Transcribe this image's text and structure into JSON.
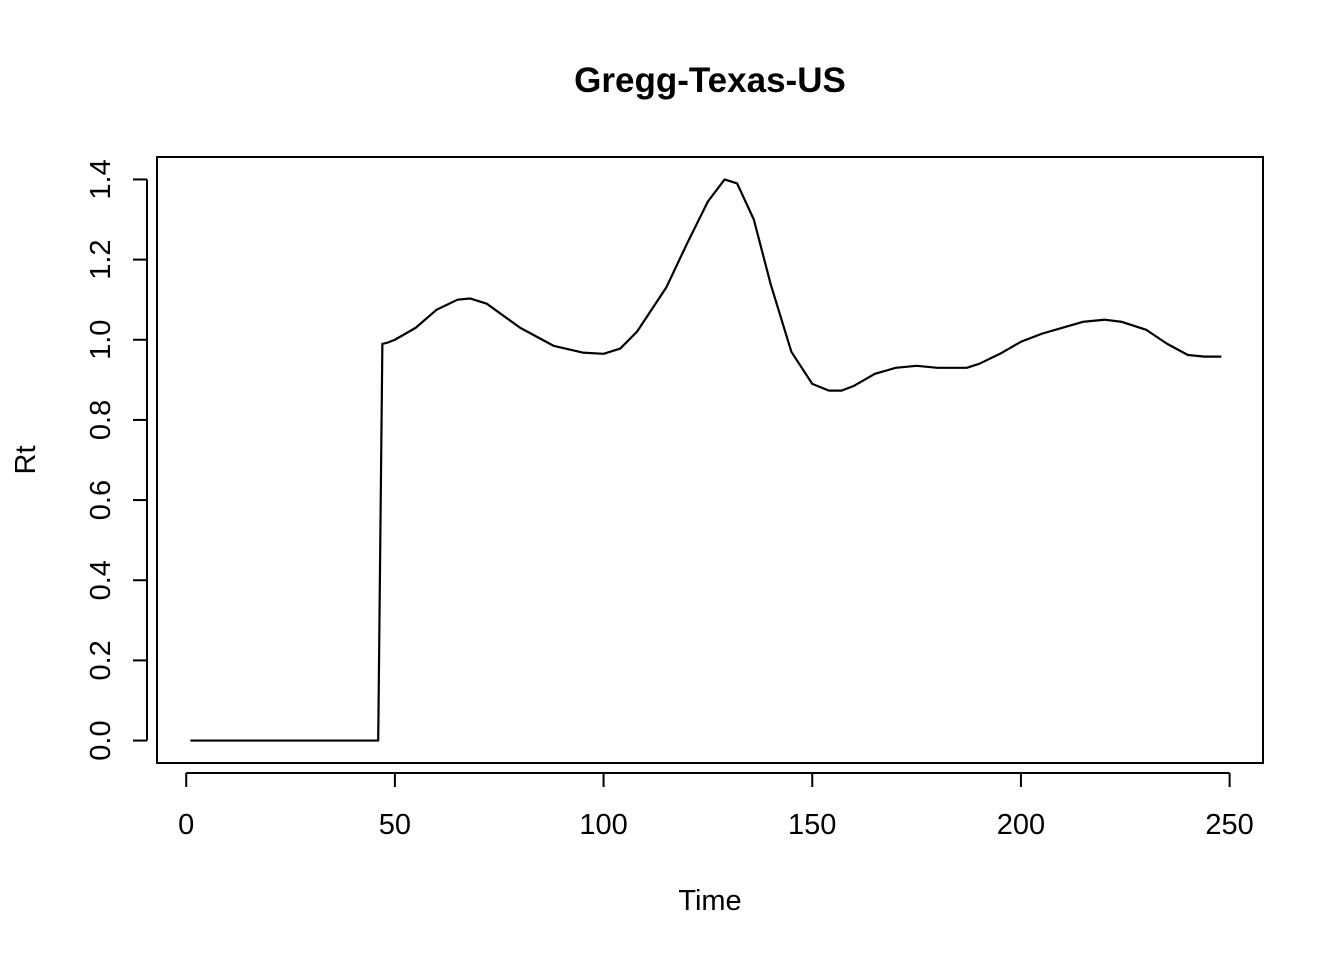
{
  "chart_data": {
    "type": "line",
    "title": "Gregg-Texas-US",
    "xlabel": "Time",
    "ylabel": "Rt",
    "xlim": [
      -7,
      258
    ],
    "ylim": [
      -0.056,
      1.456
    ],
    "xticks": [
      0,
      50,
      100,
      150,
      200,
      250
    ],
    "yticks": [
      0.0,
      0.2,
      0.4,
      0.6,
      0.8,
      1.0,
      1.2,
      1.4
    ],
    "xtick_labels": [
      "0",
      "50",
      "100",
      "150",
      "200",
      "250"
    ],
    "ytick_labels": [
      "0.0",
      "0.2",
      "0.4",
      "0.6",
      "0.8",
      "1.0",
      "1.2",
      "1.4"
    ],
    "grid": false,
    "legend": "none",
    "series": [
      {
        "color": "#000000",
        "x": [
          1,
          10,
          20,
          30,
          40,
          46,
          47,
          48,
          50,
          55,
          60,
          65,
          68,
          72,
          80,
          88,
          95,
          100,
          104,
          108,
          115,
          120,
          125,
          129,
          132,
          136,
          140,
          145,
          150,
          154,
          157,
          160,
          165,
          170,
          175,
          180,
          187,
          190,
          195,
          200,
          205,
          210,
          215,
          220,
          224,
          230,
          235,
          240,
          244,
          248
        ],
        "y": [
          0,
          0,
          0,
          0,
          0,
          0,
          0.99,
          0.992,
          1.0,
          1.03,
          1.075,
          1.1,
          1.103,
          1.09,
          1.03,
          0.985,
          0.968,
          0.965,
          0.978,
          1.02,
          1.13,
          1.24,
          1.345,
          1.4,
          1.39,
          1.3,
          1.14,
          0.97,
          0.89,
          0.873,
          0.873,
          0.885,
          0.915,
          0.93,
          0.935,
          0.93,
          0.93,
          0.94,
          0.965,
          0.995,
          1.015,
          1.03,
          1.045,
          1.05,
          1.045,
          1.025,
          0.99,
          0.962,
          0.958,
          0.958
        ]
      }
    ]
  }
}
